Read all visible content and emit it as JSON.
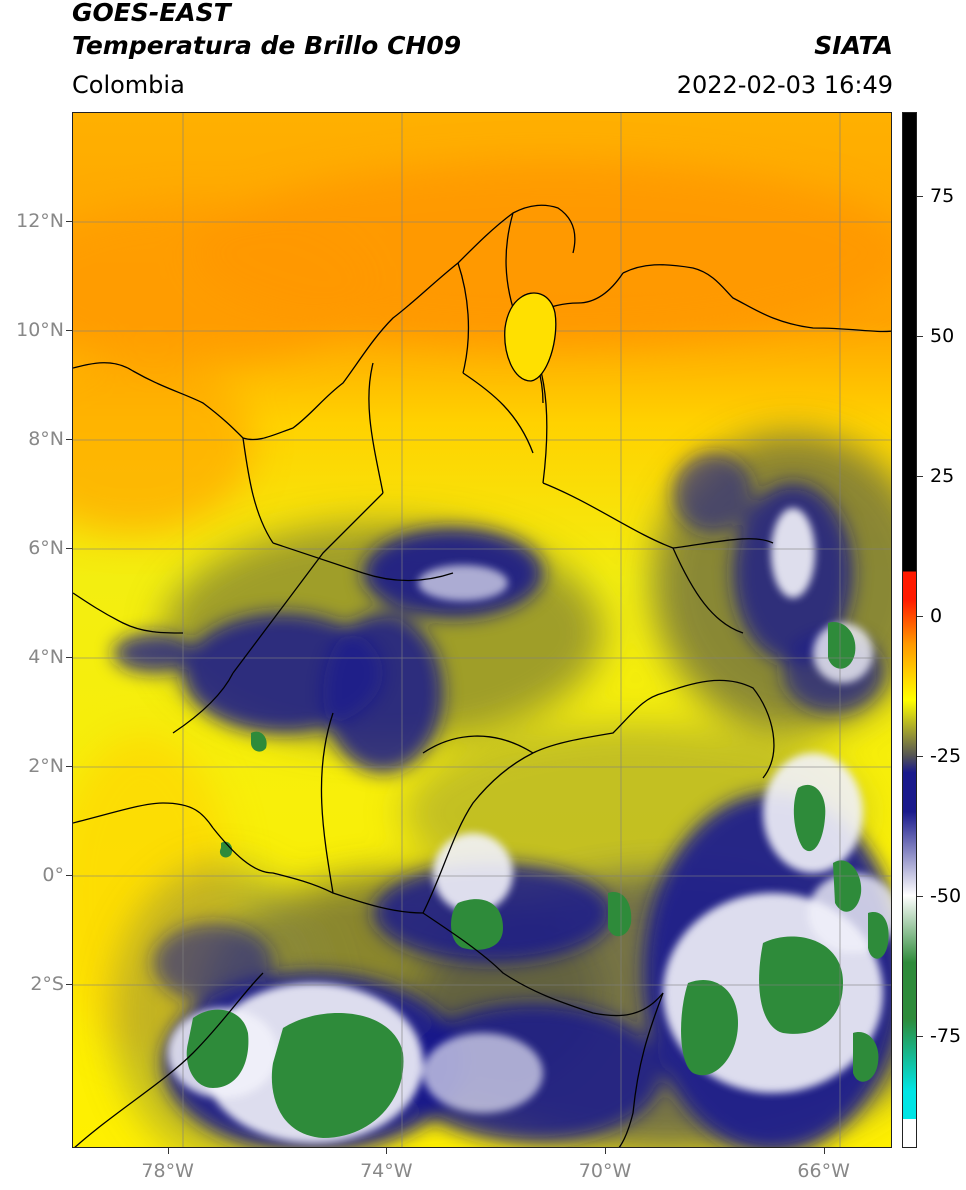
{
  "header": {
    "satellite": "GOES-EAST",
    "product": "Temperatura de Brillo CH09",
    "organization": "SIATA",
    "region": "Colombia",
    "timestamp": "2022-02-03 16:49"
  },
  "map": {
    "lat_labels": [
      "12°N",
      "10°N",
      "8°N",
      "6°N",
      "4°N",
      "2°N",
      "0°",
      "2°S"
    ],
    "lon_labels": [
      "78°W",
      "74°W",
      "70°W",
      "66°W"
    ],
    "extent": {
      "lon_min": -79.75,
      "lon_max": -64.75,
      "lat_min": -5.0,
      "lat_max": 14.0
    }
  },
  "colorbar": {
    "tick_labels": [
      "75",
      "50",
      "25",
      "0",
      "-25",
      "-50",
      "-75"
    ],
    "tick_values": [
      75,
      50,
      25,
      0,
      -25,
      -50,
      -75
    ],
    "range": [
      -95,
      90
    ],
    "colors": {
      "black": "#000000",
      "red": "#ff1a00",
      "orange": "#ff9900",
      "yellow": "#ffff00",
      "gray": "#555555",
      "navy": "#1a1a8c",
      "white": "#ffffff",
      "green": "#2e8b3a",
      "cyan": "#00e5e5"
    }
  }
}
